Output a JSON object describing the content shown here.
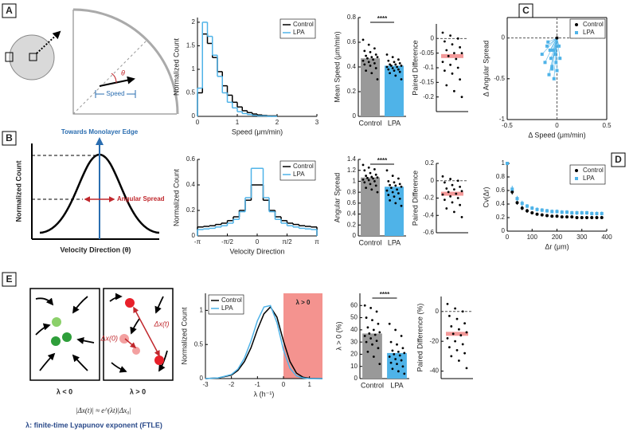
{
  "panel_labels": [
    "A",
    "B",
    "C",
    "D",
    "E"
  ],
  "diagrams": {
    "a": {
      "angle": "θ",
      "speed": "Speed"
    },
    "b": {
      "edge": "Towards Monolayer Edge",
      "spread": "Angular Spread",
      "ylabel": "Normalized Count",
      "xlabel": "Velocity Direction (θ)"
    },
    "e": {
      "stable": "λ < 0",
      "unstable": "λ > 0",
      "dxt": "Δx(t)",
      "dx0": "Δx(0)",
      "formula": "|Δx(t)| ≈ e^(λt)|Δx₀|",
      "caption": "λ: finite-time Lyapunov exponent  (FTLE)"
    }
  },
  "chart_data": [
    {
      "type": "histogram",
      "xlabel": "Speed (μm/min)",
      "ylabel": "Normalized Count",
      "xlim": [
        0,
        3
      ],
      "xticks": [
        0,
        1,
        2,
        3
      ],
      "ylim": [
        0,
        2.1
      ],
      "yticks": [
        0,
        0.5,
        1,
        1.5,
        2
      ],
      "legend": "upper right",
      "bins": [
        0,
        0.125,
        0.25,
        0.375,
        0.5,
        0.625,
        0.75,
        0.875,
        1,
        1.125,
        1.25,
        1.375,
        1.5,
        1.625,
        1.75,
        1.875,
        2
      ],
      "series": [
        {
          "name": "Control",
          "color": "#000000",
          "values": [
            0.5,
            1.75,
            1.55,
            1.25,
            0.95,
            0.65,
            0.45,
            0.3,
            0.2,
            0.12,
            0.08,
            0.05,
            0.03,
            0.02,
            0.01,
            0.01
          ]
        },
        {
          "name": "LPA",
          "color": "#4fb3e8",
          "values": [
            0.6,
            2.0,
            1.7,
            1.3,
            0.85,
            0.5,
            0.3,
            0.18,
            0.1,
            0.06,
            0.04,
            0.02,
            0.01,
            0.01,
            0,
            0
          ]
        }
      ]
    },
    {
      "type": "bar",
      "ylabel": "Mean Speed (μm/min)",
      "ylim": [
        0,
        0.8
      ],
      "yticks": [
        0,
        0.2,
        0.4,
        0.6,
        0.8
      ],
      "categories": [
        "Control",
        "LPA"
      ],
      "values": [
        0.47,
        0.41
      ],
      "colors": [
        "#999999",
        "#4fb3e8"
      ],
      "significance": "****",
      "points": [
        [
          0.62,
          0.58,
          0.55,
          0.53,
          0.52,
          0.5,
          0.49,
          0.48,
          0.48,
          0.47,
          0.46,
          0.45,
          0.44,
          0.43,
          0.42,
          0.41,
          0.39,
          0.37,
          0.35,
          0.3
        ],
        [
          0.5,
          0.48,
          0.46,
          0.45,
          0.44,
          0.43,
          0.42,
          0.42,
          0.41,
          0.41,
          0.4,
          0.4,
          0.39,
          0.38,
          0.38,
          0.37,
          0.36,
          0.35,
          0.33,
          0.3
        ]
      ]
    },
    {
      "type": "strip",
      "ylabel": "Paired Difference",
      "ylim": [
        -0.25,
        0.05
      ],
      "yticks": [
        -0.2,
        -0.15,
        -0.1,
        -0.05,
        0
      ],
      "zero_line": true,
      "mean": -0.06,
      "mean_color": "#f08080",
      "values": [
        0.02,
        0.01,
        0,
        -0.01,
        -0.02,
        -0.03,
        -0.04,
        -0.05,
        -0.05,
        -0.06,
        -0.07,
        -0.08,
        -0.09,
        -0.1,
        -0.11,
        -0.12,
        -0.14,
        -0.16,
        -0.18,
        -0.2
      ]
    },
    {
      "type": "scatter",
      "xlabel": "Δ Speed (μm/min)",
      "ylabel": "Δ Angular Spread",
      "box": true,
      "zero_lines": true,
      "connect_to_origin": true,
      "xlim": [
        -0.5,
        0.5
      ],
      "xticks": [
        -0.5,
        0,
        0.5
      ],
      "ylim": [
        -1,
        0.25
      ],
      "yticks": [
        -1,
        -0.5,
        0
      ],
      "legend": "upper right",
      "series": [
        {
          "name": "Control",
          "color": "#000000",
          "marker": "circle",
          "x": [
            0
          ],
          "values": [
            0
          ]
        },
        {
          "name": "LPA",
          "color": "#4fb3e8",
          "marker": "square",
          "x": [
            -0.15,
            -0.12,
            -0.1,
            -0.08,
            -0.06,
            -0.05,
            -0.04,
            -0.03,
            -0.02,
            -0.01,
            0,
            0.02,
            0.03,
            -0.09,
            -0.07,
            -0.05
          ],
          "values": [
            -0.2,
            -0.3,
            -0.1,
            -0.45,
            -0.25,
            -0.35,
            -0.15,
            -0.5,
            -0.2,
            -0.3,
            -0.4,
            -0.1,
            -0.25,
            -0.05,
            -0.15,
            -0.38
          ]
        }
      ]
    },
    {
      "type": "histogram",
      "xlabel": "Velocity Direction",
      "ylabel": "Normalized Count",
      "xlim": [
        -3.1416,
        3.1416
      ],
      "xticks": [
        {
          "value": -3.1416,
          "label": "-π"
        },
        {
          "value": -1.5708,
          "label": "-π/2"
        },
        0,
        {
          "value": 1.5708,
          "label": "π/2"
        },
        {
          "value": 3.1416,
          "label": "π"
        }
      ],
      "ylim": [
        0,
        0.6
      ],
      "yticks": [
        0,
        0.2,
        0.4,
        0.6
      ],
      "legend": "upper right",
      "bins": [
        -3.1416,
        -2.8274,
        -2.5133,
        -2.1991,
        -1.885,
        -1.5708,
        -1.2566,
        -0.9425,
        -0.6283,
        -0.3142,
        0,
        0.3142,
        0.6283,
        0.9425,
        1.2566,
        1.5708,
        1.885,
        2.1991,
        2.5133,
        2.8274,
        3.1416
      ],
      "series": [
        {
          "name": "Control",
          "color": "#000000",
          "values": [
            0.07,
            0.075,
            0.08,
            0.09,
            0.1,
            0.12,
            0.15,
            0.2,
            0.28,
            0.4,
            0.4,
            0.28,
            0.2,
            0.15,
            0.12,
            0.1,
            0.09,
            0.08,
            0.075,
            0.07
          ]
        },
        {
          "name": "LPA",
          "color": "#4fb3e8",
          "values": [
            0.05,
            0.055,
            0.06,
            0.07,
            0.08,
            0.1,
            0.13,
            0.19,
            0.3,
            0.53,
            0.53,
            0.3,
            0.19,
            0.13,
            0.1,
            0.08,
            0.07,
            0.06,
            0.055,
            0.05
          ]
        }
      ]
    },
    {
      "type": "bar",
      "ylabel": "Angular Spread",
      "ylim": [
        0,
        1.4
      ],
      "yticks": [
        0,
        0.2,
        0.4,
        0.6,
        0.8,
        1,
        1.2,
        1.4
      ],
      "categories": [
        "Control",
        "LPA"
      ],
      "values": [
        1.07,
        0.9
      ],
      "colors": [
        "#999999",
        "#4fb3e8"
      ],
      "significance": "****",
      "points": [
        [
          1.3,
          1.25,
          1.22,
          1.2,
          1.15,
          1.12,
          1.1,
          1.08,
          1.07,
          1.06,
          1.05,
          1.03,
          1.02,
          1.0,
          0.98,
          0.95,
          0.92,
          0.88,
          0.85,
          0.8
        ],
        [
          1.2,
          1.1,
          1.05,
          1.0,
          0.98,
          0.95,
          0.93,
          0.92,
          0.9,
          0.88,
          0.85,
          0.83,
          0.8,
          0.78,
          0.75,
          0.72,
          0.68,
          0.65,
          0.6,
          0.55
        ]
      ]
    },
    {
      "type": "strip",
      "ylabel": "Paired Difference",
      "ylim": [
        -0.6,
        0.2
      ],
      "yticks": [
        -0.6,
        -0.4,
        -0.2,
        0,
        0.2
      ],
      "zero_line": true,
      "mean": -0.15,
      "mean_color": "#f08080",
      "values": [
        0.05,
        0.02,
        0,
        -0.02,
        -0.05,
        -0.07,
        -0.09,
        -0.1,
        -0.12,
        -0.13,
        -0.15,
        -0.16,
        -0.18,
        -0.2,
        -0.22,
        -0.25,
        -0.28,
        -0.32,
        -0.36,
        -0.42
      ]
    },
    {
      "type": "scatter",
      "xlabel": "Δr (μm)",
      "ylabel": "Cv(Δr)",
      "xlim": [
        0,
        400
      ],
      "xticks": [
        0,
        100,
        200,
        300,
        400
      ],
      "ylim": [
        0,
        1
      ],
      "yticks": [
        0,
        0.2,
        0.4,
        0.6,
        0.8,
        1
      ],
      "legend": "upper right",
      "series": [
        {
          "name": "Control",
          "color": "#000000",
          "marker": "circle",
          "x": [
            0,
            20,
            40,
            60,
            80,
            100,
            120,
            140,
            160,
            180,
            200,
            220,
            240,
            260,
            280,
            300,
            320,
            340,
            360,
            380
          ],
          "values": [
            1,
            0.58,
            0.42,
            0.34,
            0.3,
            0.27,
            0.25,
            0.24,
            0.23,
            0.22,
            0.22,
            0.21,
            0.21,
            0.21,
            0.2,
            0.2,
            0.2,
            0.2,
            0.2,
            0.2
          ],
          "errors": [
            0.02,
            0.04,
            0.03,
            0.03,
            0.03,
            0.02,
            0.02,
            0.02,
            0.02,
            0.02,
            0.02,
            0.02,
            0.02,
            0.02,
            0.02,
            0.02,
            0.02,
            0.02,
            0.02,
            0.02
          ]
        },
        {
          "name": "LPA",
          "color": "#4fb3e8",
          "marker": "square",
          "x": [
            0,
            20,
            40,
            60,
            80,
            100,
            120,
            140,
            160,
            180,
            200,
            220,
            240,
            260,
            280,
            300,
            320,
            340,
            360,
            380
          ],
          "values": [
            1,
            0.62,
            0.48,
            0.41,
            0.37,
            0.34,
            0.32,
            0.31,
            0.3,
            0.29,
            0.29,
            0.28,
            0.28,
            0.27,
            0.27,
            0.27,
            0.27,
            0.26,
            0.26,
            0.26
          ],
          "errors": [
            0.02,
            0.05,
            0.04,
            0.04,
            0.03,
            0.03,
            0.03,
            0.03,
            0.03,
            0.03,
            0.03,
            0.03,
            0.03,
            0.03,
            0.03,
            0.03,
            0.03,
            0.03,
            0.03,
            0.03
          ]
        }
      ]
    },
    {
      "type": "line",
      "xlabel": "λ (h⁻¹)",
      "ylabel": "Normalized Count",
      "xlim": [
        -3,
        1.5
      ],
      "xticks": [
        -3,
        -2,
        -1,
        0,
        1
      ],
      "ylim": [
        0,
        1.25
      ],
      "yticks": [
        0,
        0.5,
        1
      ],
      "legend": "upper left",
      "highlight": {
        "from": 0,
        "to": 1.5,
        "label": "λ > 0",
        "color": "#f4938f"
      },
      "x": [
        -3,
        -2.5,
        -2,
        -1.75,
        -1.5,
        -1.25,
        -1,
        -0.75,
        -0.5,
        -0.25,
        0,
        0.25,
        0.5,
        0.75,
        1,
        1.5
      ],
      "series": [
        {
          "name": "Control",
          "color": "#000000",
          "values": [
            0,
            0.01,
            0.05,
            0.12,
            0.25,
            0.45,
            0.72,
            0.95,
            1.05,
            0.9,
            0.55,
            0.25,
            0.08,
            0.02,
            0.005,
            0
          ]
        },
        {
          "name": "LPA",
          "color": "#4fb3e8",
          "values": [
            0,
            0.01,
            0.06,
            0.14,
            0.3,
            0.55,
            0.85,
            1.05,
            1.07,
            0.82,
            0.42,
            0.15,
            0.04,
            0.01,
            0,
            0
          ]
        }
      ]
    },
    {
      "type": "bar",
      "ylabel": "λ > 0 (%)",
      "ylim": [
        0,
        70
      ],
      "yticks": [
        0,
        10,
        20,
        30,
        40,
        50,
        60
      ],
      "categories": [
        "Control",
        "LPA"
      ],
      "values": [
        37,
        21
      ],
      "colors": [
        "#999999",
        "#4fb3e8"
      ],
      "significance": "****",
      "points": [
        [
          60,
          58,
          55,
          50,
          48,
          45,
          42,
          40,
          38,
          37,
          36,
          35,
          33,
          31,
          30,
          28,
          25,
          22,
          18,
          12
        ],
        [
          45,
          40,
          35,
          30,
          28,
          25,
          23,
          22,
          21,
          20,
          19,
          18,
          16,
          15,
          13,
          12,
          10,
          8,
          6,
          4
        ]
      ]
    },
    {
      "type": "strip",
      "ylabel": "Paired Difference (%)",
      "ylim": [
        -45,
        10
      ],
      "yticks": [
        -40,
        -20,
        0
      ],
      "zero_line": true,
      "mean": -15,
      "mean_color": "#f08080",
      "values": [
        5,
        2,
        0,
        -3,
        -5,
        -8,
        -10,
        -12,
        -14,
        -15,
        -16,
        -18,
        -20,
        -22,
        -24,
        -26,
        -28,
        -30,
        -33,
        -38
      ]
    }
  ]
}
